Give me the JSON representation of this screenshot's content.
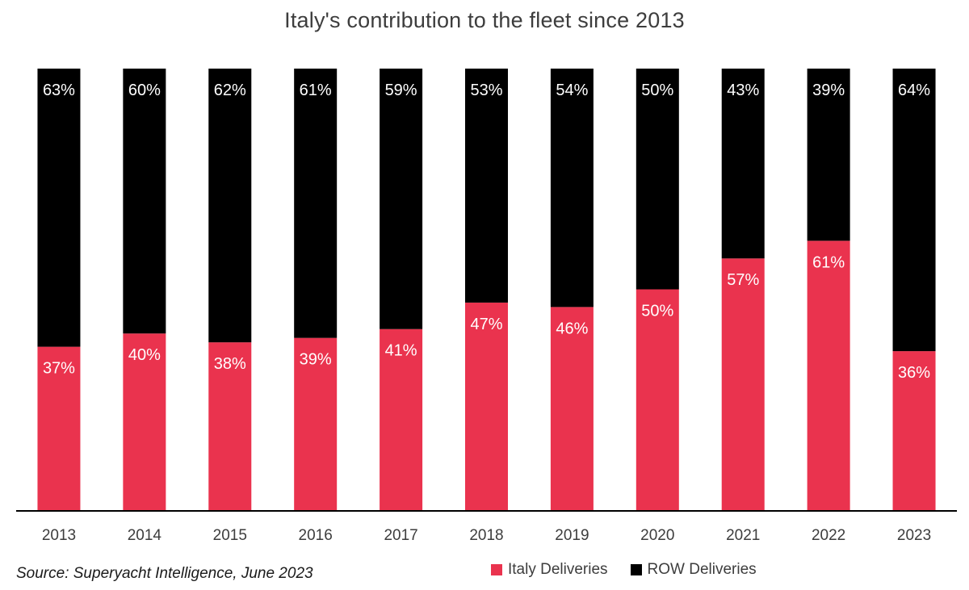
{
  "chart_data": {
    "type": "bar",
    "stacked": true,
    "title": "Italy's contribution to the fleet since 2013",
    "xlabel": "",
    "ylabel": "",
    "ylim": [
      0,
      100
    ],
    "grid": false,
    "legend_position": "bottom-right",
    "categories": [
      "2013",
      "2014",
      "2015",
      "2016",
      "2017",
      "2018",
      "2019",
      "2020",
      "2021",
      "2022",
      "2023"
    ],
    "series": [
      {
        "name": "Italy Deliveries",
        "color": "#ea334e",
        "values": [
          37,
          40,
          38,
          39,
          41,
          47,
          46,
          50,
          57,
          61,
          36
        ],
        "labels": [
          "37%",
          "40%",
          "38%",
          "39%",
          "41%",
          "47%",
          "46%",
          "50%",
          "57%",
          "61%",
          "36%"
        ]
      },
      {
        "name": "ROW Deliveries",
        "color": "#000000",
        "values": [
          63,
          60,
          62,
          61,
          59,
          53,
          54,
          50,
          43,
          39,
          64
        ],
        "labels": [
          "63%",
          "60%",
          "62%",
          "61%",
          "59%",
          "53%",
          "54%",
          "50%",
          "43%",
          "39%",
          "64%"
        ]
      }
    ],
    "source": "Source: Superyacht Intelligence, June 2023"
  }
}
